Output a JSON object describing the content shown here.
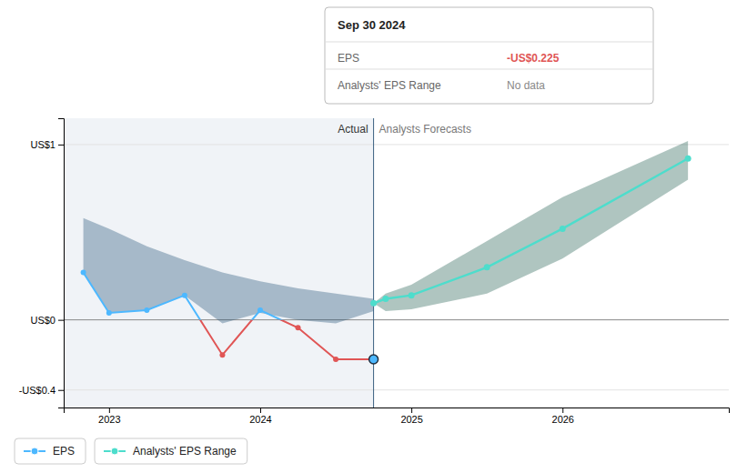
{
  "chart_data": {
    "type": "line",
    "series": [
      {
        "name": "EPS",
        "color": "#4db8ff",
        "negative_color": "#e05555",
        "marker": "circle",
        "x": [
          2022.83,
          2023.0,
          2023.25,
          2023.5,
          2023.75,
          2024.0,
          2024.25,
          2024.5,
          2024.75
        ],
        "values": [
          0.27,
          0.04,
          0.055,
          0.14,
          -0.2,
          0.055,
          -0.045,
          -0.225,
          -0.225
        ]
      },
      {
        "name": "Analysts' EPS Range",
        "color": "#4dddcc",
        "marker": "circle",
        "x": [
          2024.75,
          2024.83,
          2025.0,
          2025.5,
          2026.0,
          2026.83
        ],
        "values": [
          0.095,
          0.12,
          0.14,
          0.3,
          0.52,
          0.92
        ],
        "upper": [
          0.095,
          0.15,
          0.2,
          0.45,
          0.7,
          1.02
        ],
        "lower": [
          0.095,
          0.05,
          0.06,
          0.15,
          0.35,
          0.8
        ],
        "band_color": "#1a5a4a"
      }
    ],
    "bands": [
      {
        "x": [
          2022.83,
          2023.0,
          2023.25,
          2023.5,
          2023.75,
          2024.0,
          2024.25,
          2024.5,
          2024.75
        ],
        "upper": [
          0.58,
          0.52,
          0.42,
          0.34,
          0.27,
          0.22,
          0.18,
          0.15,
          0.12
        ],
        "lower": [
          0.27,
          0.04,
          0.055,
          0.14,
          -0.02,
          0.04,
          0.0,
          -0.02,
          0.05
        ],
        "color": "#1e4d72"
      }
    ],
    "divider": {
      "x": 2024.75,
      "labels": [
        "Actual",
        "Analysts Forecasts"
      ]
    },
    "tooltip": {
      "title": "Sep 30 2024",
      "rows": [
        {
          "label": "EPS",
          "value": -0.225,
          "value_label": "-US$0.225"
        },
        {
          "label": "Analysts' EPS Range",
          "value_label": "No data"
        }
      ]
    },
    "xlim": [
      2022.7,
      2027.1
    ],
    "xticks": [
      2023,
      2024,
      2025,
      2026
    ],
    "ylim": [
      -0.5,
      1.15
    ],
    "yticks": [
      {
        "value": -0.4,
        "label": "-US$0.4"
      },
      {
        "value": 0,
        "label": "US$0"
      },
      {
        "value": 1,
        "label": "US$1"
      }
    ],
    "grid": true,
    "legend": "bottom"
  }
}
